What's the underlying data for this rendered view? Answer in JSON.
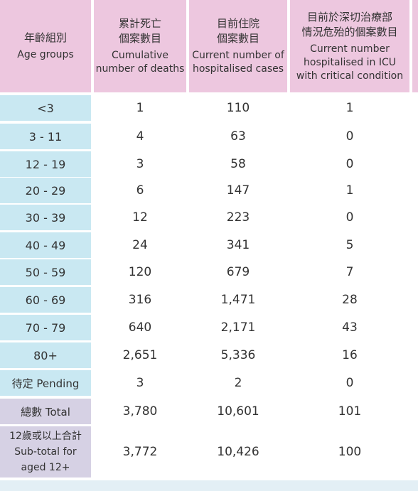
{
  "table": {
    "headers": [
      {
        "zh": "年齡組別",
        "en": "Age groups"
      },
      {
        "zh": "累計死亡\n個案數目",
        "en": "Cumulative\nnumber of deaths"
      },
      {
        "zh": "目前住院\n個案數目",
        "en": "Current number of\nhospitalised cases"
      },
      {
        "zh": "目前於深切治療部\n情況危殆的個案數目",
        "en": "Current number\nhospitalised in ICU\nwith critical condition"
      }
    ],
    "rows": [
      {
        "age": "<3",
        "deaths": "1",
        "hospitalised": "110",
        "icu": "1"
      },
      {
        "age": "3 - 11",
        "deaths": "4",
        "hospitalised": "63",
        "icu": "0"
      },
      {
        "age": "12 - 19",
        "deaths": "3",
        "hospitalised": "58",
        "icu": "0"
      },
      {
        "age": "20 - 29",
        "deaths": "6",
        "hospitalised": "147",
        "icu": "1"
      },
      {
        "age": "30 - 39",
        "deaths": "12",
        "hospitalised": "223",
        "icu": "0"
      },
      {
        "age": "40 - 49",
        "deaths": "24",
        "hospitalised": "341",
        "icu": "5"
      },
      {
        "age": "50 - 59",
        "deaths": "120",
        "hospitalised": "679",
        "icu": "7"
      },
      {
        "age": "60 - 69",
        "deaths": "316",
        "hospitalised": "1,471",
        "icu": "28"
      },
      {
        "age": "70 - 79",
        "deaths": "640",
        "hospitalised": "2,171",
        "icu": "43"
      },
      {
        "age": "80+",
        "deaths": "2,651",
        "hospitalised": "5,336",
        "icu": "16"
      },
      {
        "age": "待定 Pending",
        "deaths": "3",
        "hospitalised": "2",
        "icu": "0"
      }
    ],
    "totals": [
      {
        "label": "總數 Total",
        "deaths": "3,780",
        "hospitalised": "10,601",
        "icu": "101"
      },
      {
        "label": "12歲或以上合計\nSub-total for\naged 12+",
        "deaths": "3,772",
        "hospitalised": "10,426",
        "icu": "100"
      }
    ]
  },
  "colors": {
    "header_bg": "#edc7df",
    "age_bg": "#c9e8f2",
    "total_bg": "#d6d1e4",
    "value_bg": "#ffffff"
  }
}
